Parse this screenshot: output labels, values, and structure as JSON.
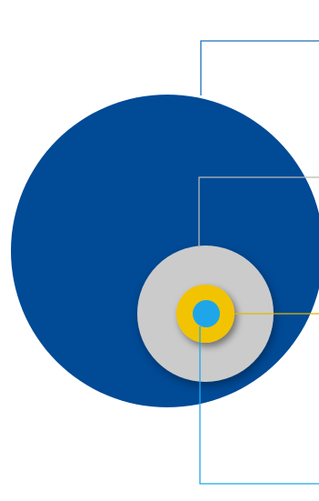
{
  "diagram": {
    "colors": {
      "background": "#ffffff",
      "outer_circle": "#004a96",
      "middle_circle": "#cbcbcb",
      "inner_ring": "#f2c300",
      "core_dot": "#1fa6e8",
      "leader_outer": "#1e6fb8",
      "leader_middle": "#b8b8b8",
      "leader_ring": "#e0b800",
      "leader_core": "#1fa6e8"
    },
    "layers": [
      {
        "id": "outer",
        "label": ""
      },
      {
        "id": "middle",
        "label": ""
      },
      {
        "id": "ring",
        "label": ""
      },
      {
        "id": "core",
        "label": ""
      }
    ]
  }
}
